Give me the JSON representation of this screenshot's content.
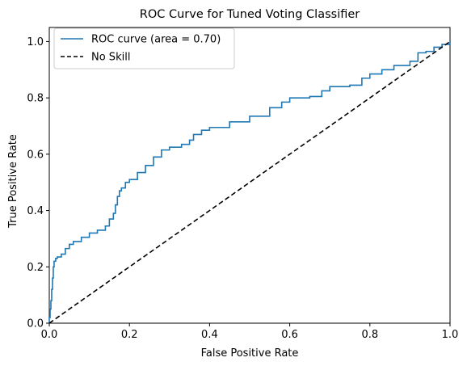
{
  "chart_data": {
    "type": "line",
    "title": "ROC Curve for Tuned Voting Classifier",
    "xlabel": "False Positive Rate",
    "ylabel": "True Positive Rate",
    "xlim": [
      0.0,
      1.0
    ],
    "ylim": [
      0.0,
      1.05
    ],
    "xticks": [
      0.0,
      0.2,
      0.4,
      0.6,
      0.8,
      1.0
    ],
    "yticks": [
      0.0,
      0.2,
      0.4,
      0.6,
      0.8,
      1.0
    ],
    "xtick_labels": [
      "0.0",
      "0.2",
      "0.4",
      "0.6",
      "0.8",
      "1.0"
    ],
    "ytick_labels": [
      "0.0",
      "0.2",
      "0.4",
      "0.6",
      "0.8",
      "1.0"
    ],
    "grid": false,
    "legend_position": "top-left",
    "series": [
      {
        "name": "ROC curve (area = 0.70)",
        "color": "#1f77b4",
        "style": "solid",
        "x": [
          0.0,
          0.0,
          0.002,
          0.004,
          0.006,
          0.008,
          0.01,
          0.012,
          0.016,
          0.02,
          0.03,
          0.04,
          0.05,
          0.06,
          0.08,
          0.1,
          0.12,
          0.14,
          0.15,
          0.16,
          0.165,
          0.17,
          0.175,
          0.18,
          0.19,
          0.2,
          0.22,
          0.24,
          0.26,
          0.28,
          0.3,
          0.33,
          0.35,
          0.36,
          0.38,
          0.4,
          0.45,
          0.5,
          0.55,
          0.58,
          0.6,
          0.65,
          0.68,
          0.7,
          0.75,
          0.78,
          0.8,
          0.83,
          0.86,
          0.9,
          0.92,
          0.94,
          0.96,
          0.98,
          1.0
        ],
        "y": [
          0.0,
          0.02,
          0.05,
          0.08,
          0.12,
          0.16,
          0.2,
          0.22,
          0.23,
          0.235,
          0.245,
          0.265,
          0.28,
          0.29,
          0.305,
          0.32,
          0.33,
          0.345,
          0.37,
          0.39,
          0.42,
          0.45,
          0.47,
          0.48,
          0.5,
          0.51,
          0.535,
          0.56,
          0.59,
          0.615,
          0.625,
          0.635,
          0.65,
          0.67,
          0.685,
          0.695,
          0.715,
          0.735,
          0.765,
          0.785,
          0.8,
          0.805,
          0.825,
          0.84,
          0.845,
          0.87,
          0.885,
          0.9,
          0.915,
          0.93,
          0.96,
          0.965,
          0.98,
          0.99,
          1.0
        ]
      },
      {
        "name": "No Skill",
        "color": "#000000",
        "style": "dashed",
        "x": [
          0.0,
          1.0
        ],
        "y": [
          0.0,
          1.0
        ]
      }
    ]
  }
}
